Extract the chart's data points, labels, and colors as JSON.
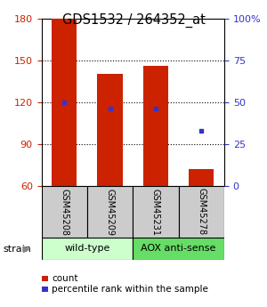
{
  "title": "GDS1532 / 264352_at",
  "samples": [
    "GSM45208",
    "GSM45209",
    "GSM45231",
    "GSM45278"
  ],
  "bar_bottoms": [
    60,
    60,
    60,
    60
  ],
  "bar_tops": [
    180,
    140,
    146,
    72
  ],
  "bar_color": "#cc2200",
  "percentile_pct": [
    50,
    46,
    46,
    33
  ],
  "dot_color": "#3333cc",
  "ylim_left": [
    60,
    180
  ],
  "ylim_right": [
    0,
    100
  ],
  "yticks_left": [
    60,
    90,
    120,
    150,
    180
  ],
  "yticks_right": [
    0,
    25,
    50,
    75,
    100
  ],
  "yticklabels_right": [
    "0",
    "25",
    "50",
    "75",
    "100%"
  ],
  "left_tick_color": "#cc2200",
  "right_tick_color": "#3333cc",
  "groups": [
    {
      "label": "wild-type",
      "indices": [
        0,
        1
      ],
      "color": "#ccffcc"
    },
    {
      "label": "AOX anti-sense",
      "indices": [
        2,
        3
      ],
      "color": "#66dd66"
    }
  ],
  "group_row_label": "strain",
  "legend_count_color": "#cc2200",
  "legend_pct_color": "#3333cc",
  "legend_count_label": "count",
  "legend_pct_label": "percentile rank within the sample",
  "bar_width": 0.55
}
